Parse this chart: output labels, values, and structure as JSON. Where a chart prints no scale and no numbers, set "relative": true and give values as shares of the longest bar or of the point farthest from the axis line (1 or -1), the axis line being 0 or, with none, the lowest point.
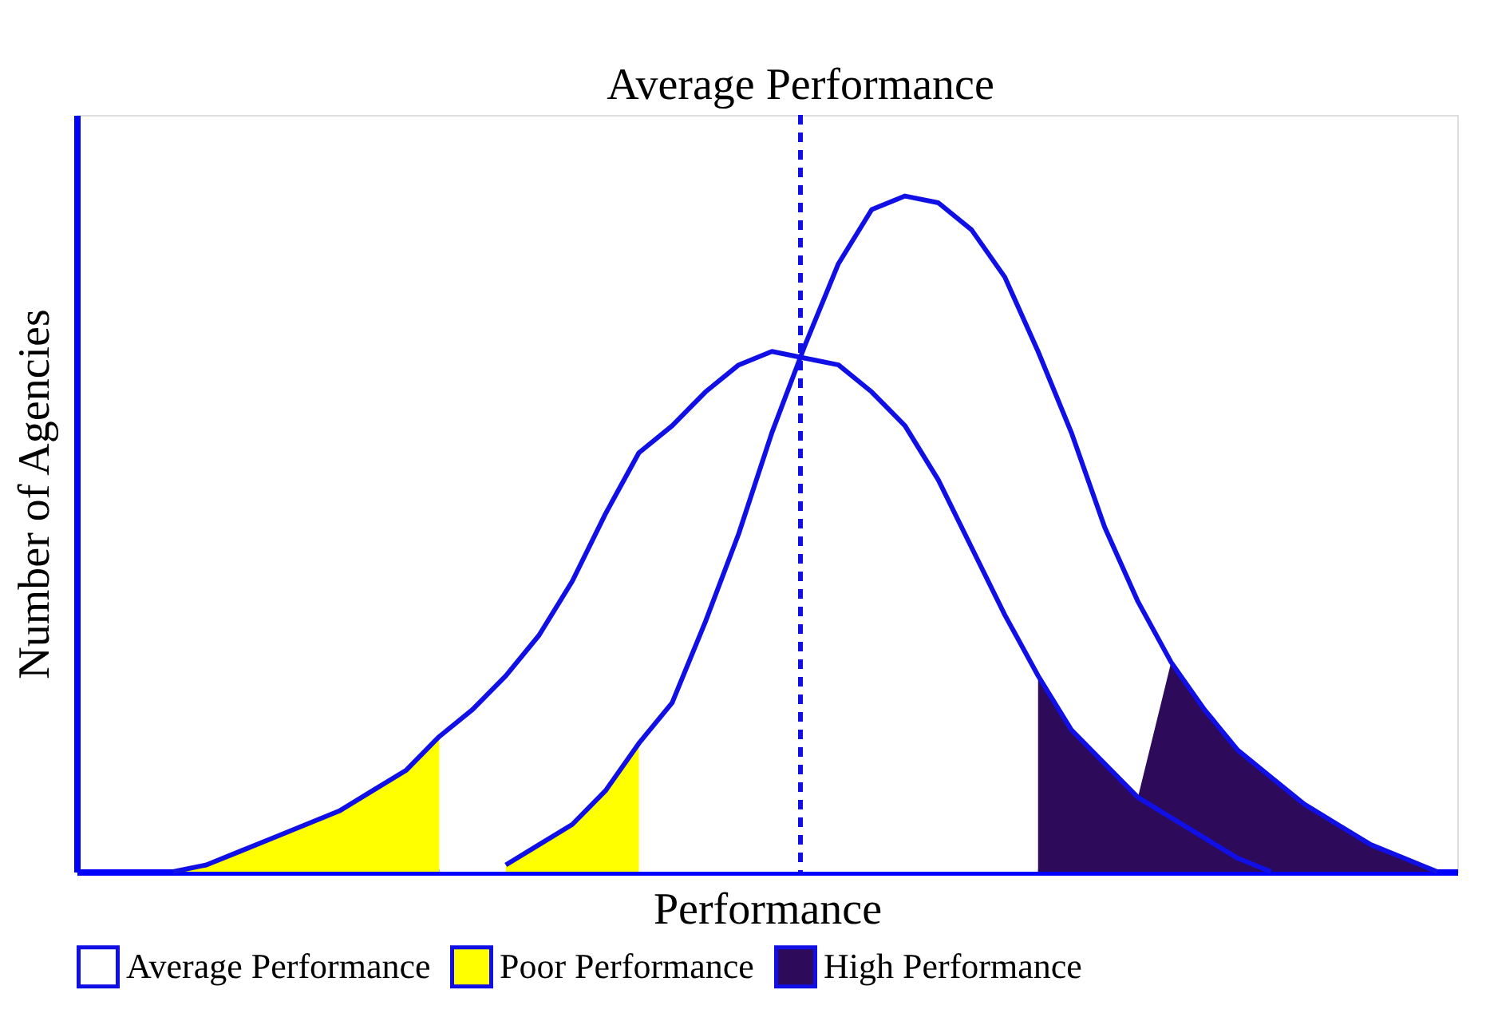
{
  "chart_data": {
    "type": "line",
    "relative": true,
    "xlabel": "Performance",
    "ylabel": "Number of Agencies",
    "legend": "bottom",
    "marker": "none",
    "line_style": "solid",
    "grid": false,
    "categories": [
      null,
      null,
      null,
      null,
      null,
      null,
      null,
      null,
      null,
      null,
      null,
      null,
      null,
      null,
      null,
      null,
      null,
      null,
      null,
      null,
      null,
      null,
      null,
      null,
      null,
      null,
      null,
      null,
      null,
      null,
      null,
      null,
      null,
      null,
      null,
      null,
      null,
      null,
      null
    ],
    "series": [
      {
        "name": "Average Performance",
        "type": "area",
        "color": "#ffffff",
        "values": [
          null,
          null,
          null,
          null,
          null,
          null,
          null,
          null,
          0.2,
          0.24,
          0.29,
          0.35,
          0.43,
          0.53,
          0.62,
          0.66,
          0.71,
          0.75,
          0.77,
          0.78,
          0.9,
          0.98,
          1.0,
          0.99,
          0.95,
          0.88,
          0.77,
          null,
          null,
          null,
          null,
          null,
          null,
          null,
          null,
          null,
          null,
          null,
          null
        ]
      },
      {
        "name": "Poor Performance",
        "type": "area",
        "color": "#ffff00",
        "values": [
          0.0,
          0.01,
          0.03,
          0.05,
          0.07,
          0.09,
          0.12,
          0.15,
          0.2,
          null,
          0.01,
          0.04,
          0.07,
          0.12,
          0.19,
          null,
          null,
          null,
          null,
          null,
          null,
          null,
          null,
          null,
          null,
          null,
          null,
          null,
          null,
          null,
          null,
          null,
          null,
          null,
          null,
          null,
          null,
          null,
          null
        ]
      },
      {
        "name": "High Performance",
        "type": "area",
        "color": "#2d0a5a",
        "values": [
          null,
          null,
          null,
          null,
          null,
          null,
          null,
          null,
          null,
          null,
          null,
          null,
          null,
          null,
          null,
          null,
          null,
          null,
          null,
          null,
          null,
          null,
          null,
          null,
          null,
          null,
          0.29,
          0.21,
          0.16,
          0.11,
          0.31,
          0.24,
          0.18,
          0.14,
          0.1,
          0.07,
          0.04,
          0.02,
          0.0
        ]
      },
      {
        "color": "#1010e6",
        "values": [
          0.0,
          0.01,
          0.03,
          0.05,
          0.07,
          0.09,
          0.12,
          0.15,
          0.2,
          0.24,
          0.29,
          0.35,
          0.43,
          0.53,
          0.62,
          0.66,
          0.71,
          0.75,
          0.77,
          0.76,
          0.75,
          0.71,
          0.66,
          0.58,
          0.48,
          0.38,
          0.29,
          0.21,
          0.16,
          0.11,
          0.08,
          0.05,
          0.02,
          0.0,
          null,
          null,
          null,
          null,
          null
        ]
      },
      {
        "color": "#1010e6",
        "values": [
          null,
          null,
          null,
          null,
          null,
          null,
          null,
          null,
          null,
          null,
          0.01,
          0.04,
          0.07,
          0.12,
          0.19,
          0.25,
          0.37,
          0.5,
          0.65,
          0.78,
          0.9,
          0.98,
          1.0,
          0.99,
          0.95,
          0.88,
          0.77,
          0.65,
          0.51,
          0.4,
          0.31,
          0.24,
          0.18,
          0.14,
          0.1,
          0.07,
          0.04,
          0.02,
          0.0
        ]
      }
    ],
    "annotations": [
      "Average Performance"
    ]
  }
}
